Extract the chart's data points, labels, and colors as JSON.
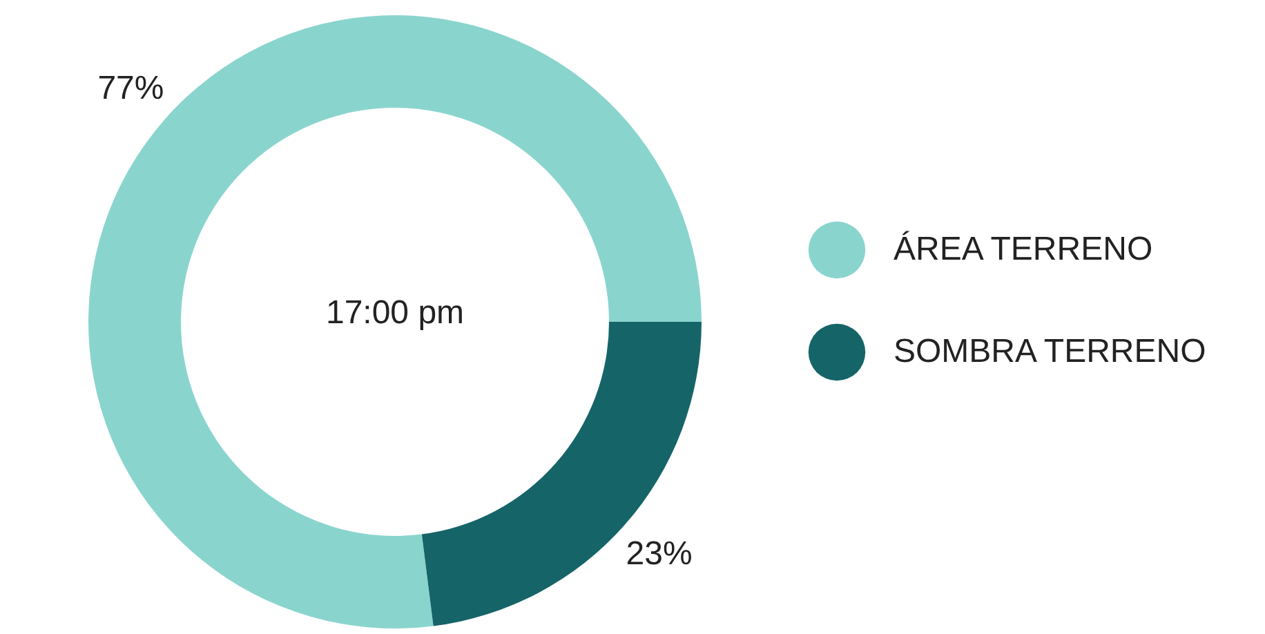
{
  "chart_data": {
    "type": "donut",
    "title": "17:00 pm",
    "categories": [
      "ÁREA TERRENO",
      "SOMBRA TERRENO"
    ],
    "values": [
      77,
      23
    ],
    "colors": [
      "#8ad4ce",
      "#156468"
    ],
    "value_labels": [
      "77%",
      "23%"
    ],
    "legend": "right"
  }
}
